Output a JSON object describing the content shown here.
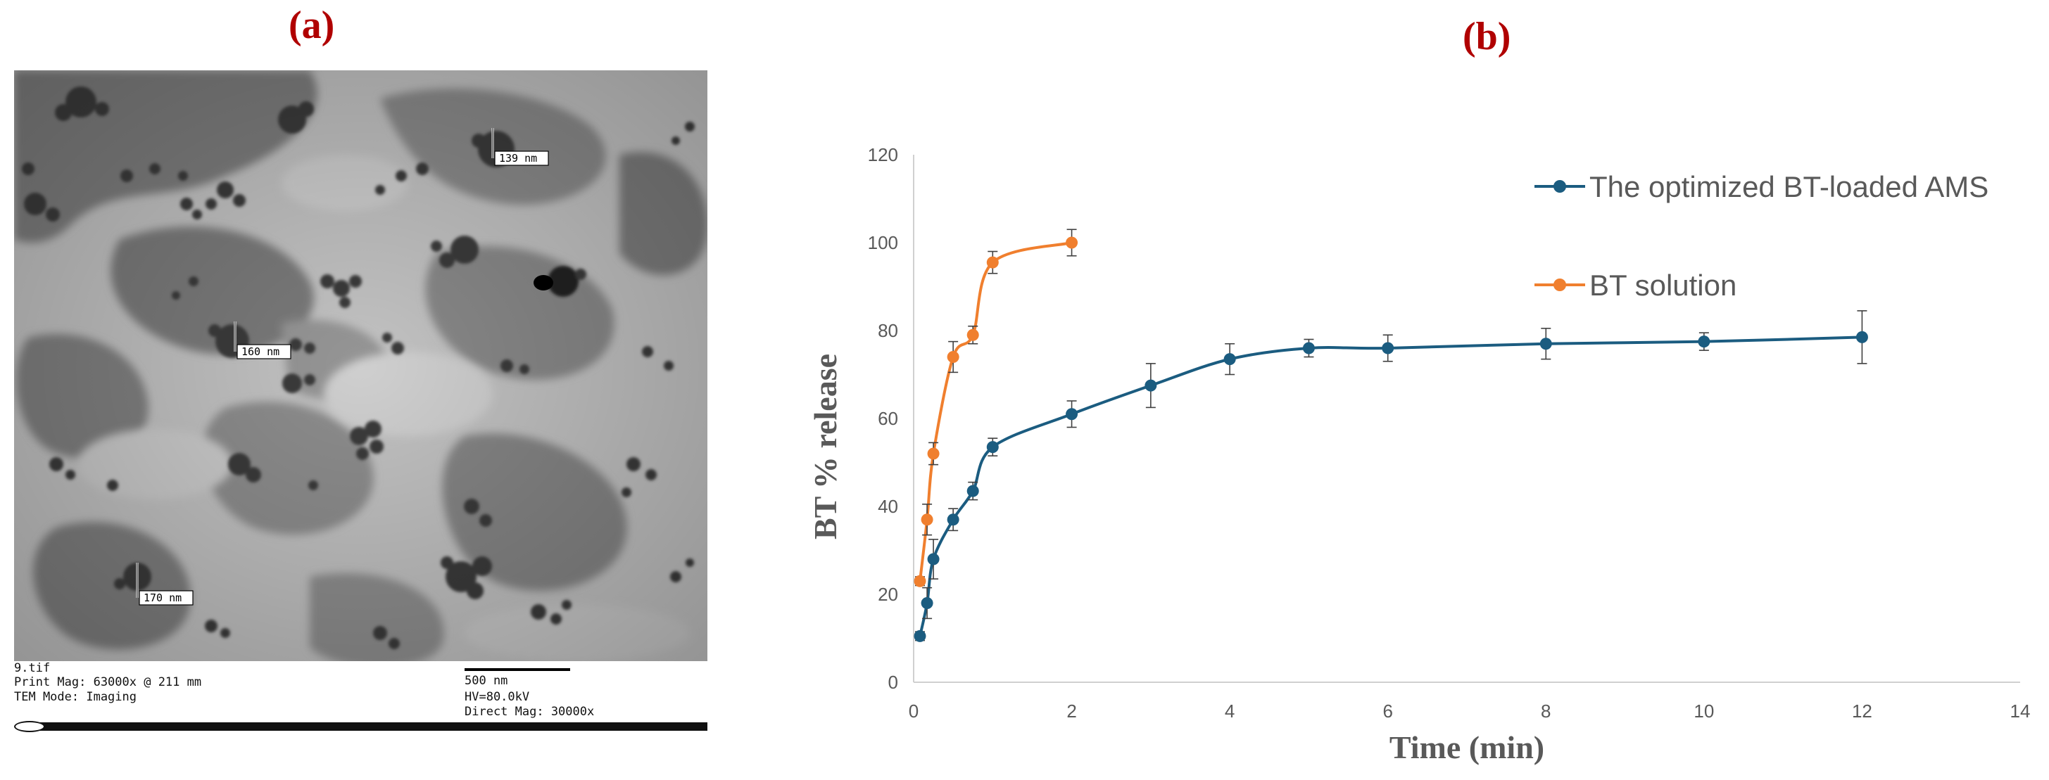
{
  "panels": {
    "a": "(a)",
    "b": "(b)"
  },
  "tem": {
    "measurements": [
      "139 nm",
      "160 nm",
      "170 nm"
    ],
    "footer": {
      "file": "9.tif",
      "print_mag": "Print Mag: 63000x @ 211 mm",
      "mode": "TEM Mode: Imaging",
      "scale_bar": "500 nm",
      "hv": "HV=80.0kV",
      "direct_mag": "Direct Mag: 30000x"
    }
  },
  "chart_data": {
    "type": "line",
    "xlabel": "Time (min)",
    "ylabel": "BT % release",
    "xlim": [
      0,
      14
    ],
    "ylim": [
      0,
      120
    ],
    "xticks": [
      0,
      2,
      4,
      6,
      8,
      10,
      12,
      14
    ],
    "yticks": [
      0,
      20,
      40,
      60,
      80,
      100,
      120
    ],
    "grid": false,
    "legend": "top-right",
    "series": [
      {
        "name": "The optimized BT-loaded AMS",
        "color": "#1b5c80",
        "x": [
          0.08,
          0.17,
          0.25,
          0.5,
          0.75,
          1,
          2,
          3,
          4,
          5,
          6,
          8,
          10,
          12
        ],
        "y": [
          10.5,
          18,
          28,
          37,
          43.5,
          53.5,
          61,
          67.5,
          73.5,
          76,
          76,
          77,
          77.5,
          78.5
        ],
        "err": [
          1,
          3.5,
          4.5,
          2.5,
          2,
          2,
          3,
          5,
          3.5,
          2,
          3,
          3.5,
          2,
          6
        ]
      },
      {
        "name": "BT solution",
        "color": "#f07f2e",
        "x": [
          0.08,
          0.17,
          0.25,
          0.5,
          0.75,
          1,
          2
        ],
        "y": [
          23,
          37,
          52,
          74,
          79,
          95.5,
          100
        ],
        "err": [
          1,
          3.5,
          2.5,
          3.5,
          2,
          2.5,
          3
        ]
      }
    ]
  }
}
